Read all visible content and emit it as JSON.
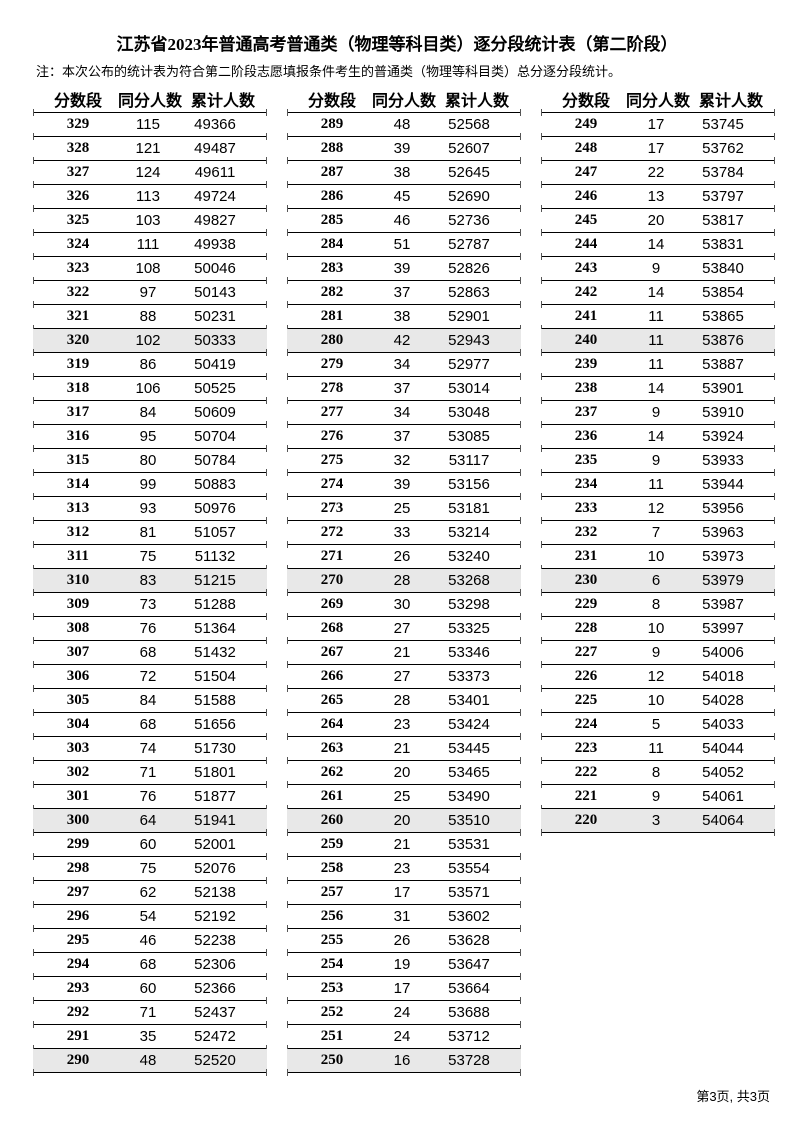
{
  "title": "江苏省2023年普通高考普通类（物理等科目类）逐分段统计表（第二阶段）",
  "note": "注：本次公布的统计表为符合第二阶段志愿填报条件考生的普通类（物理等科目类）总分逐分段统计。",
  "headers": [
    "分数段",
    "同分人数",
    "累计人数"
  ],
  "highlight_color": "#e8e8e8",
  "columns": [
    [
      [
        "329",
        "115",
        "49366"
      ],
      [
        "328",
        "121",
        "49487"
      ],
      [
        "327",
        "124",
        "49611"
      ],
      [
        "326",
        "113",
        "49724"
      ],
      [
        "325",
        "103",
        "49827"
      ],
      [
        "324",
        "111",
        "49938"
      ],
      [
        "323",
        "108",
        "50046"
      ],
      [
        "322",
        "97",
        "50143"
      ],
      [
        "321",
        "88",
        "50231"
      ],
      [
        "320",
        "102",
        "50333"
      ],
      [
        "319",
        "86",
        "50419"
      ],
      [
        "318",
        "106",
        "50525"
      ],
      [
        "317",
        "84",
        "50609"
      ],
      [
        "316",
        "95",
        "50704"
      ],
      [
        "315",
        "80",
        "50784"
      ],
      [
        "314",
        "99",
        "50883"
      ],
      [
        "313",
        "93",
        "50976"
      ],
      [
        "312",
        "81",
        "51057"
      ],
      [
        "311",
        "75",
        "51132"
      ],
      [
        "310",
        "83",
        "51215"
      ],
      [
        "309",
        "73",
        "51288"
      ],
      [
        "308",
        "76",
        "51364"
      ],
      [
        "307",
        "68",
        "51432"
      ],
      [
        "306",
        "72",
        "51504"
      ],
      [
        "305",
        "84",
        "51588"
      ],
      [
        "304",
        "68",
        "51656"
      ],
      [
        "303",
        "74",
        "51730"
      ],
      [
        "302",
        "71",
        "51801"
      ],
      [
        "301",
        "76",
        "51877"
      ],
      [
        "300",
        "64",
        "51941"
      ],
      [
        "299",
        "60",
        "52001"
      ],
      [
        "298",
        "75",
        "52076"
      ],
      [
        "297",
        "62",
        "52138"
      ],
      [
        "296",
        "54",
        "52192"
      ],
      [
        "295",
        "46",
        "52238"
      ],
      [
        "294",
        "68",
        "52306"
      ],
      [
        "293",
        "60",
        "52366"
      ],
      [
        "292",
        "71",
        "52437"
      ],
      [
        "291",
        "35",
        "52472"
      ],
      [
        "290",
        "48",
        "52520"
      ]
    ],
    [
      [
        "289",
        "48",
        "52568"
      ],
      [
        "288",
        "39",
        "52607"
      ],
      [
        "287",
        "38",
        "52645"
      ],
      [
        "286",
        "45",
        "52690"
      ],
      [
        "285",
        "46",
        "52736"
      ],
      [
        "284",
        "51",
        "52787"
      ],
      [
        "283",
        "39",
        "52826"
      ],
      [
        "282",
        "37",
        "52863"
      ],
      [
        "281",
        "38",
        "52901"
      ],
      [
        "280",
        "42",
        "52943"
      ],
      [
        "279",
        "34",
        "52977"
      ],
      [
        "278",
        "37",
        "53014"
      ],
      [
        "277",
        "34",
        "53048"
      ],
      [
        "276",
        "37",
        "53085"
      ],
      [
        "275",
        "32",
        "53117"
      ],
      [
        "274",
        "39",
        "53156"
      ],
      [
        "273",
        "25",
        "53181"
      ],
      [
        "272",
        "33",
        "53214"
      ],
      [
        "271",
        "26",
        "53240"
      ],
      [
        "270",
        "28",
        "53268"
      ],
      [
        "269",
        "30",
        "53298"
      ],
      [
        "268",
        "27",
        "53325"
      ],
      [
        "267",
        "21",
        "53346"
      ],
      [
        "266",
        "27",
        "53373"
      ],
      [
        "265",
        "28",
        "53401"
      ],
      [
        "264",
        "23",
        "53424"
      ],
      [
        "263",
        "21",
        "53445"
      ],
      [
        "262",
        "20",
        "53465"
      ],
      [
        "261",
        "25",
        "53490"
      ],
      [
        "260",
        "20",
        "53510"
      ],
      [
        "259",
        "21",
        "53531"
      ],
      [
        "258",
        "23",
        "53554"
      ],
      [
        "257",
        "17",
        "53571"
      ],
      [
        "256",
        "31",
        "53602"
      ],
      [
        "255",
        "26",
        "53628"
      ],
      [
        "254",
        "19",
        "53647"
      ],
      [
        "253",
        "17",
        "53664"
      ],
      [
        "252",
        "24",
        "53688"
      ],
      [
        "251",
        "24",
        "53712"
      ],
      [
        "250",
        "16",
        "53728"
      ]
    ],
    [
      [
        "249",
        "17",
        "53745"
      ],
      [
        "248",
        "17",
        "53762"
      ],
      [
        "247",
        "22",
        "53784"
      ],
      [
        "246",
        "13",
        "53797"
      ],
      [
        "245",
        "20",
        "53817"
      ],
      [
        "244",
        "14",
        "53831"
      ],
      [
        "243",
        "9",
        "53840"
      ],
      [
        "242",
        "14",
        "53854"
      ],
      [
        "241",
        "11",
        "53865"
      ],
      [
        "240",
        "11",
        "53876"
      ],
      [
        "239",
        "11",
        "53887"
      ],
      [
        "238",
        "14",
        "53901"
      ],
      [
        "237",
        "9",
        "53910"
      ],
      [
        "236",
        "14",
        "53924"
      ],
      [
        "235",
        "9",
        "53933"
      ],
      [
        "234",
        "11",
        "53944"
      ],
      [
        "233",
        "12",
        "53956"
      ],
      [
        "232",
        "7",
        "53963"
      ],
      [
        "231",
        "10",
        "53973"
      ],
      [
        "230",
        "6",
        "53979"
      ],
      [
        "229",
        "8",
        "53987"
      ],
      [
        "228",
        "10",
        "53997"
      ],
      [
        "227",
        "9",
        "54006"
      ],
      [
        "226",
        "12",
        "54018"
      ],
      [
        "225",
        "10",
        "54028"
      ],
      [
        "224",
        "5",
        "54033"
      ],
      [
        "223",
        "11",
        "54044"
      ],
      [
        "222",
        "8",
        "54052"
      ],
      [
        "221",
        "9",
        "54061"
      ],
      [
        "220",
        "3",
        "54064"
      ]
    ]
  ],
  "footer": "第3页, 共3页"
}
